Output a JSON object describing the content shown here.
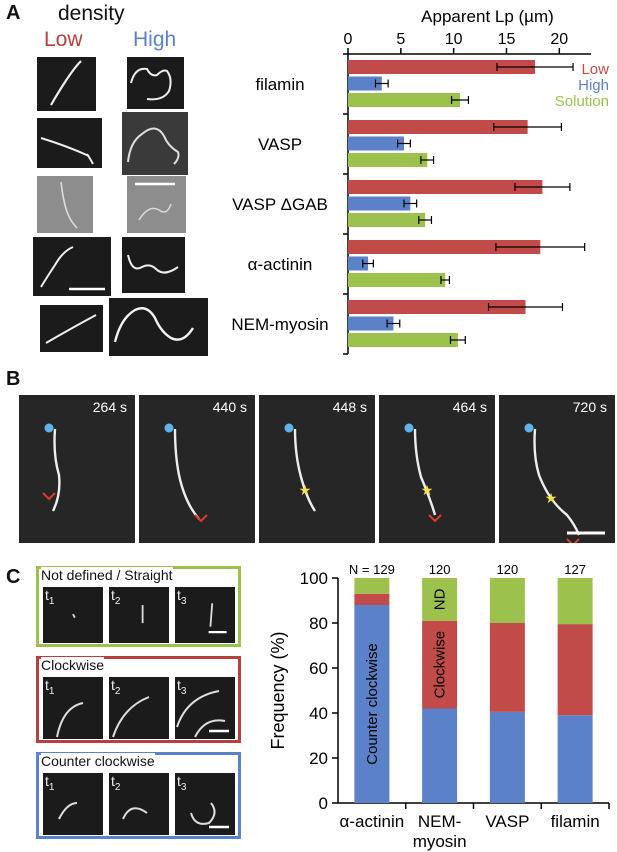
{
  "panels": {
    "A": "A",
    "B": "B",
    "C": "C"
  },
  "panelA": {
    "density_label": "density",
    "low_label": "Low",
    "high_label": "High",
    "low_color": "#b7403f",
    "high_color": "#5b82c8"
  },
  "panelB": {
    "times": [
      "264 s",
      "440 s",
      "448 s",
      "464 s",
      "720 s"
    ],
    "dot_color": "#5fb3e8",
    "star_color": "#f5e14a",
    "arrow_color": "#e03a2e"
  },
  "panelC": {
    "boxes": [
      {
        "title": "Not defined / Straight",
        "color": "#9cc24d"
      },
      {
        "title": "Clockwise",
        "color": "#b7403f"
      },
      {
        "title": "Counter clockwise",
        "color": "#5b82c8"
      }
    ],
    "tlabels": [
      "t",
      "t",
      "t"
    ],
    "tsubs": [
      "1",
      "2",
      "3"
    ]
  },
  "chart_data": [
    {
      "type": "bar",
      "orientation": "horizontal",
      "title": "Apparent Lp (µm)",
      "categories": [
        "filamin",
        "VASP",
        "VASP ΔGAB",
        "α-actinin",
        "NEM-myosin"
      ],
      "series": [
        {
          "name": "Low",
          "color": "#c04b49",
          "values": [
            17.7,
            17.0,
            18.4,
            18.2,
            16.8
          ],
          "errors": [
            3.6,
            3.2,
            2.6,
            4.2,
            3.5
          ]
        },
        {
          "name": "High",
          "color": "#5b82c8",
          "values": [
            3.2,
            5.3,
            5.9,
            1.9,
            4.3
          ],
          "errors": [
            0.6,
            0.6,
            0.6,
            0.5,
            0.6
          ]
        },
        {
          "name": "Solution",
          "color": "#9cc24d",
          "values": [
            10.6,
            7.5,
            7.3,
            9.2,
            10.4
          ],
          "errors": [
            0.8,
            0.6,
            0.6,
            0.4,
            0.7
          ]
        }
      ],
      "xlim": [
        0,
        23
      ],
      "xticks": [
        0,
        5,
        10,
        15,
        20
      ],
      "legend": "top-right"
    },
    {
      "type": "bar",
      "stacked": true,
      "ylabel": "Frequency (%)",
      "categories": [
        "α-actinin",
        "NEM-myosin",
        "VASP",
        "filamin"
      ],
      "category_lines": [
        [
          "α-actinin"
        ],
        [
          "NEM-",
          "myosin"
        ],
        [
          "VASP"
        ],
        [
          "filamin"
        ]
      ],
      "n_labels": [
        "N = 129",
        "120",
        "120",
        "127"
      ],
      "series": [
        {
          "name": "Counter clockwise",
          "color": "#5b82c8",
          "values": [
            88,
            42,
            40.5,
            39
          ]
        },
        {
          "name": "Clockwise",
          "color": "#c04b49",
          "values": [
            5,
            39,
            39.5,
            40.5
          ]
        },
        {
          "name": "ND",
          "color": "#9cc24d",
          "values": [
            7,
            19,
            20,
            20.5
          ]
        }
      ],
      "in_bar_labels": [
        {
          "text": "Counter clockwise",
          "category": 0,
          "series": 0
        },
        {
          "text": "Clockwise",
          "category": 1,
          "series": 1
        },
        {
          "text": "ND",
          "category": 1,
          "series": 2
        }
      ],
      "ylim": [
        0,
        100
      ],
      "yticks": [
        0,
        20,
        40,
        60,
        80,
        100
      ]
    }
  ]
}
